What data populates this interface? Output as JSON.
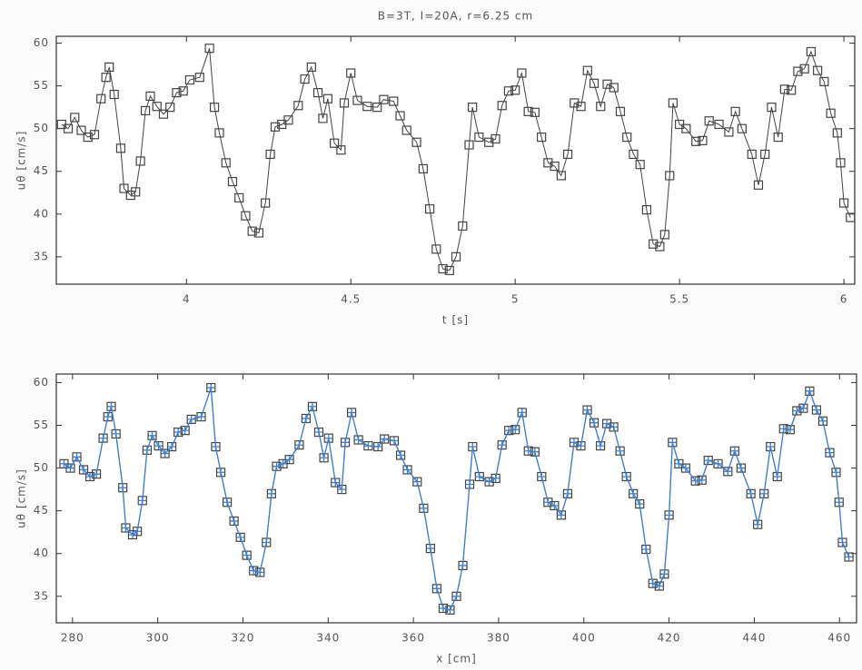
{
  "chart_data": [
    {
      "type": "line",
      "title": "B=3T, I=20A, r=6.25 cm",
      "xlabel": "t [s]",
      "ylabel": "uθ [cm/s]",
      "xlim": [
        3.604,
        6.033
      ],
      "ylim": [
        31.8,
        60.8
      ],
      "xticks": [
        4,
        4.5,
        5,
        5.5,
        6
      ],
      "yticks": [
        35,
        40,
        45,
        50,
        55,
        60
      ],
      "x": [
        3.62,
        3.64,
        3.66,
        3.68,
        3.7,
        3.72,
        3.74,
        3.755,
        3.765,
        3.78,
        3.8,
        3.81,
        3.83,
        3.845,
        3.86,
        3.875,
        3.89,
        3.91,
        3.93,
        3.95,
        3.97,
        3.99,
        4.01,
        4.04,
        4.07,
        4.085,
        4.1,
        4.12,
        4.14,
        4.16,
        4.18,
        4.2,
        4.22,
        4.24,
        4.255,
        4.27,
        4.29,
        4.31,
        4.34,
        4.36,
        4.38,
        4.4,
        4.415,
        4.43,
        4.45,
        4.47,
        4.48,
        4.5,
        4.52,
        4.55,
        4.58,
        4.6,
        4.63,
        4.65,
        4.67,
        4.7,
        4.72,
        4.74,
        4.76,
        4.78,
        4.8,
        4.82,
        4.84,
        4.86,
        4.87,
        4.89,
        4.92,
        4.94,
        4.96,
        4.98,
        5.0,
        5.02,
        5.04,
        5.06,
        5.08,
        5.1,
        5.12,
        5.14,
        5.16,
        5.18,
        5.2,
        5.22,
        5.24,
        5.26,
        5.28,
        5.3,
        5.32,
        5.34,
        5.36,
        5.38,
        5.4,
        5.42,
        5.44,
        5.455,
        5.47,
        5.48,
        5.5,
        5.52,
        5.55,
        5.57,
        5.59,
        5.62,
        5.65,
        5.67,
        5.69,
        5.72,
        5.74,
        5.76,
        5.78,
        5.8,
        5.82,
        5.84,
        5.86,
        5.88,
        5.9,
        5.92,
        5.94,
        5.96,
        5.98,
        5.99,
        6.0,
        6.02
      ],
      "series": [
        {
          "color": "#444444",
          "marker": "square",
          "values": [
            50.5,
            50.0,
            51.3,
            49.8,
            49.0,
            49.3,
            53.5,
            56.0,
            57.2,
            54.0,
            47.7,
            43.0,
            42.2,
            42.6,
            46.2,
            52.1,
            53.8,
            52.6,
            51.7,
            52.5,
            54.2,
            54.4,
            55.7,
            56.0,
            59.4,
            52.5,
            49.5,
            46.0,
            43.8,
            41.9,
            39.8,
            38.0,
            37.8,
            41.3,
            47.0,
            50.2,
            50.5,
            51.0,
            52.7,
            55.8,
            57.2,
            54.2,
            51.2,
            53.5,
            48.3,
            47.5,
            53.0,
            56.5,
            53.3,
            52.6,
            52.5,
            53.4,
            53.2,
            51.5,
            49.8,
            48.4,
            45.3,
            40.6,
            35.9,
            33.6,
            33.4,
            35.0,
            38.6,
            48.1,
            52.5,
            49.0,
            48.4,
            48.8,
            52.7,
            54.4,
            54.5,
            56.5,
            52.0,
            51.9,
            49.0,
            46.0,
            45.6,
            44.5,
            47.0,
            53.0,
            52.6,
            56.8,
            55.3,
            52.6,
            55.2,
            54.8,
            52.0,
            49.0,
            47.0,
            45.8,
            40.5,
            36.5,
            36.2,
            37.6,
            44.5,
            53.0,
            50.5,
            50.0,
            48.5,
            48.6,
            50.9,
            50.5,
            49.6,
            52.0,
            50.0,
            47.0,
            43.4,
            47.0,
            52.5,
            49.0,
            54.6,
            54.5,
            56.7,
            57.0,
            59.0,
            56.8,
            55.5,
            51.8,
            49.5,
            46.0,
            41.3,
            39.6
          ]
        }
      ]
    },
    {
      "type": "line",
      "xlabel": "x [cm]",
      "ylabel": "uθ [cm/s]",
      "xlim": [
        276.2,
        464
      ],
      "ylim": [
        31.9,
        61
      ],
      "xticks": [
        280,
        300,
        320,
        340,
        360,
        380,
        400,
        420,
        440,
        460
      ],
      "yticks": [
        35,
        40,
        45,
        50,
        55,
        60
      ],
      "x": [
        278.0,
        279.5,
        281.0,
        282.6,
        284.1,
        285.6,
        287.2,
        288.3,
        289.1,
        290.2,
        291.8,
        292.5,
        294.1,
        295.2,
        296.4,
        297.5,
        298.7,
        300.2,
        301.7,
        303.3,
        304.8,
        306.4,
        307.9,
        310.2,
        312.5,
        313.6,
        314.8,
        316.3,
        317.9,
        319.4,
        320.9,
        322.5,
        324.0,
        325.5,
        326.7,
        327.9,
        329.4,
        330.9,
        333.2,
        334.8,
        336.3,
        337.8,
        339.0,
        340.1,
        341.7,
        343.2,
        344.0,
        345.5,
        347.1,
        349.4,
        351.7,
        353.2,
        355.5,
        357.0,
        358.6,
        360.9,
        362.4,
        364.0,
        365.5,
        367.0,
        368.6,
        370.1,
        371.6,
        373.2,
        373.9,
        375.5,
        377.8,
        379.3,
        380.8,
        382.4,
        383.9,
        385.5,
        387.0,
        388.5,
        390.1,
        391.6,
        393.1,
        394.7,
        396.2,
        397.7,
        399.3,
        400.8,
        402.4,
        403.9,
        405.4,
        407.0,
        408.5,
        410.0,
        411.6,
        413.1,
        414.6,
        416.2,
        417.7,
        418.9,
        420.0,
        420.8,
        422.3,
        423.9,
        426.2,
        427.7,
        429.2,
        431.5,
        433.8,
        435.4,
        436.9,
        439.2,
        440.8,
        442.3,
        443.8,
        445.4,
        446.9,
        448.4,
        450.0,
        451.5,
        453.0,
        454.6,
        456.1,
        457.7,
        459.2,
        459.9,
        460.7,
        462.2
      ],
      "series": [
        {
          "color": "#444444",
          "marker": "square",
          "values": [
            50.5,
            50.0,
            51.3,
            49.8,
            49.0,
            49.3,
            53.5,
            56.0,
            57.2,
            54.0,
            47.7,
            43.0,
            42.2,
            42.6,
            46.2,
            52.1,
            53.8,
            52.6,
            51.7,
            52.5,
            54.2,
            54.4,
            55.7,
            56.0,
            59.4,
            52.5,
            49.5,
            46.0,
            43.8,
            41.9,
            39.8,
            38.0,
            37.8,
            41.3,
            47.0,
            50.2,
            50.5,
            51.0,
            52.7,
            55.8,
            57.2,
            54.2,
            51.2,
            53.5,
            48.3,
            47.5,
            53.0,
            56.5,
            53.3,
            52.6,
            52.5,
            53.4,
            53.2,
            51.5,
            49.8,
            48.4,
            45.3,
            40.6,
            35.9,
            33.6,
            33.4,
            35.0,
            38.6,
            48.1,
            52.5,
            49.0,
            48.4,
            48.8,
            52.7,
            54.4,
            54.5,
            56.5,
            52.0,
            51.9,
            49.0,
            46.0,
            45.6,
            44.5,
            47.0,
            53.0,
            52.6,
            56.8,
            55.3,
            52.6,
            55.2,
            54.8,
            52.0,
            49.0,
            47.0,
            45.8,
            40.5,
            36.5,
            36.2,
            37.6,
            44.5,
            53.0,
            50.5,
            50.0,
            48.5,
            48.6,
            50.9,
            50.5,
            49.6,
            52.0,
            50.0,
            47.0,
            43.4,
            47.0,
            52.5,
            49.0,
            54.6,
            54.5,
            56.7,
            57.0,
            59.0,
            56.8,
            55.5,
            51.8,
            49.5,
            46.0,
            41.3,
            39.6
          ]
        },
        {
          "color": "#3a7fd5",
          "marker": "plus",
          "values": [
            50.5,
            50.0,
            51.3,
            49.8,
            49.0,
            49.3,
            53.5,
            56.0,
            57.2,
            54.0,
            47.7,
            43.0,
            42.2,
            42.6,
            46.2,
            52.1,
            53.8,
            52.6,
            51.7,
            52.5,
            54.2,
            54.4,
            55.7,
            56.0,
            59.4,
            52.5,
            49.5,
            46.0,
            43.8,
            41.9,
            39.8,
            38.0,
            37.8,
            41.3,
            47.0,
            50.2,
            50.5,
            51.0,
            52.7,
            55.8,
            57.2,
            54.2,
            51.2,
            53.5,
            48.3,
            47.5,
            53.0,
            56.5,
            53.3,
            52.6,
            52.5,
            53.4,
            53.2,
            51.5,
            49.8,
            48.4,
            45.3,
            40.6,
            35.9,
            33.6,
            33.4,
            35.0,
            38.6,
            48.1,
            52.5,
            49.0,
            48.4,
            48.8,
            52.7,
            54.4,
            54.5,
            56.5,
            52.0,
            51.9,
            49.0,
            46.0,
            45.6,
            44.5,
            47.0,
            53.0,
            52.6,
            56.8,
            55.3,
            52.6,
            55.2,
            54.8,
            52.0,
            49.0,
            47.0,
            45.8,
            40.5,
            36.5,
            36.2,
            37.6,
            44.5,
            53.0,
            50.5,
            50.0,
            48.5,
            48.6,
            50.9,
            50.5,
            49.6,
            52.0,
            50.0,
            47.0,
            43.4,
            47.0,
            52.5,
            49.0,
            54.6,
            54.5,
            56.7,
            57.0,
            59.0,
            56.8,
            55.5,
            51.8,
            49.5,
            46.0,
            41.3,
            39.6
          ]
        }
      ]
    }
  ]
}
